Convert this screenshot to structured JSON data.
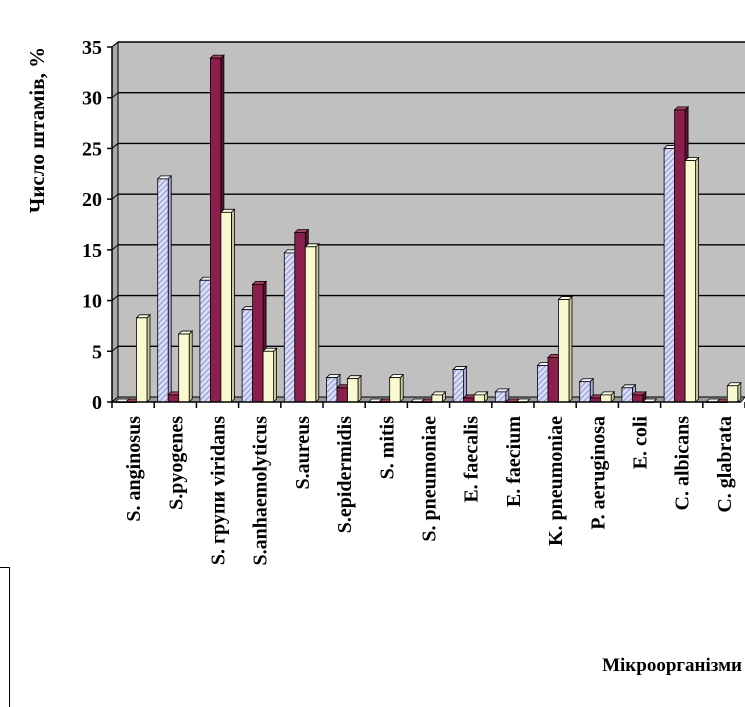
{
  "chart_data": {
    "type": "bar",
    "title": "",
    "ylabel": "Число штамів, %",
    "xlabel": "Мікроорганізми",
    "ylim": [
      0,
      35
    ],
    "yticks": [
      0,
      5,
      10,
      15,
      20,
      25,
      30,
      35
    ],
    "grid": true,
    "legend": "none",
    "categories": [
      "S. anginosus",
      "S.pyogenes",
      "S. групи viridans",
      "S.anhaemolyticus",
      "S.aureus",
      "S.epidermidis",
      "S. mitis",
      "S. pneumoniae",
      "E. faecalis",
      "E. faecium",
      "K. pneumoniae",
      "P. aeruginosa",
      "E. coli",
      "C. albicans",
      "C. glabrata"
    ],
    "series": [
      {
        "values": [
          0,
          22,
          12,
          9.1,
          14.7,
          2.4,
          0,
          0,
          3.2,
          1,
          3.6,
          2,
          1.4,
          25,
          0
        ]
      },
      {
        "values": [
          0,
          0.7,
          33.9,
          11.6,
          16.7,
          1.4,
          0,
          0,
          0.4,
          0,
          4.4,
          0.4,
          0.7,
          28.8,
          0
        ]
      },
      {
        "values": [
          8.3,
          6.7,
          18.7,
          5,
          15.3,
          2.3,
          2.4,
          0.7,
          0.7,
          0,
          10.1,
          0.7,
          0,
          23.8,
          1.6
        ]
      }
    ]
  },
  "colors": {
    "plot_bg": "#c0c0c0",
    "series1_fill": "#d8dcf4",
    "series1_hatch": "#8c94d2",
    "series2_fill": "#8a1e4c",
    "series3_fill": "#fafad0"
  }
}
